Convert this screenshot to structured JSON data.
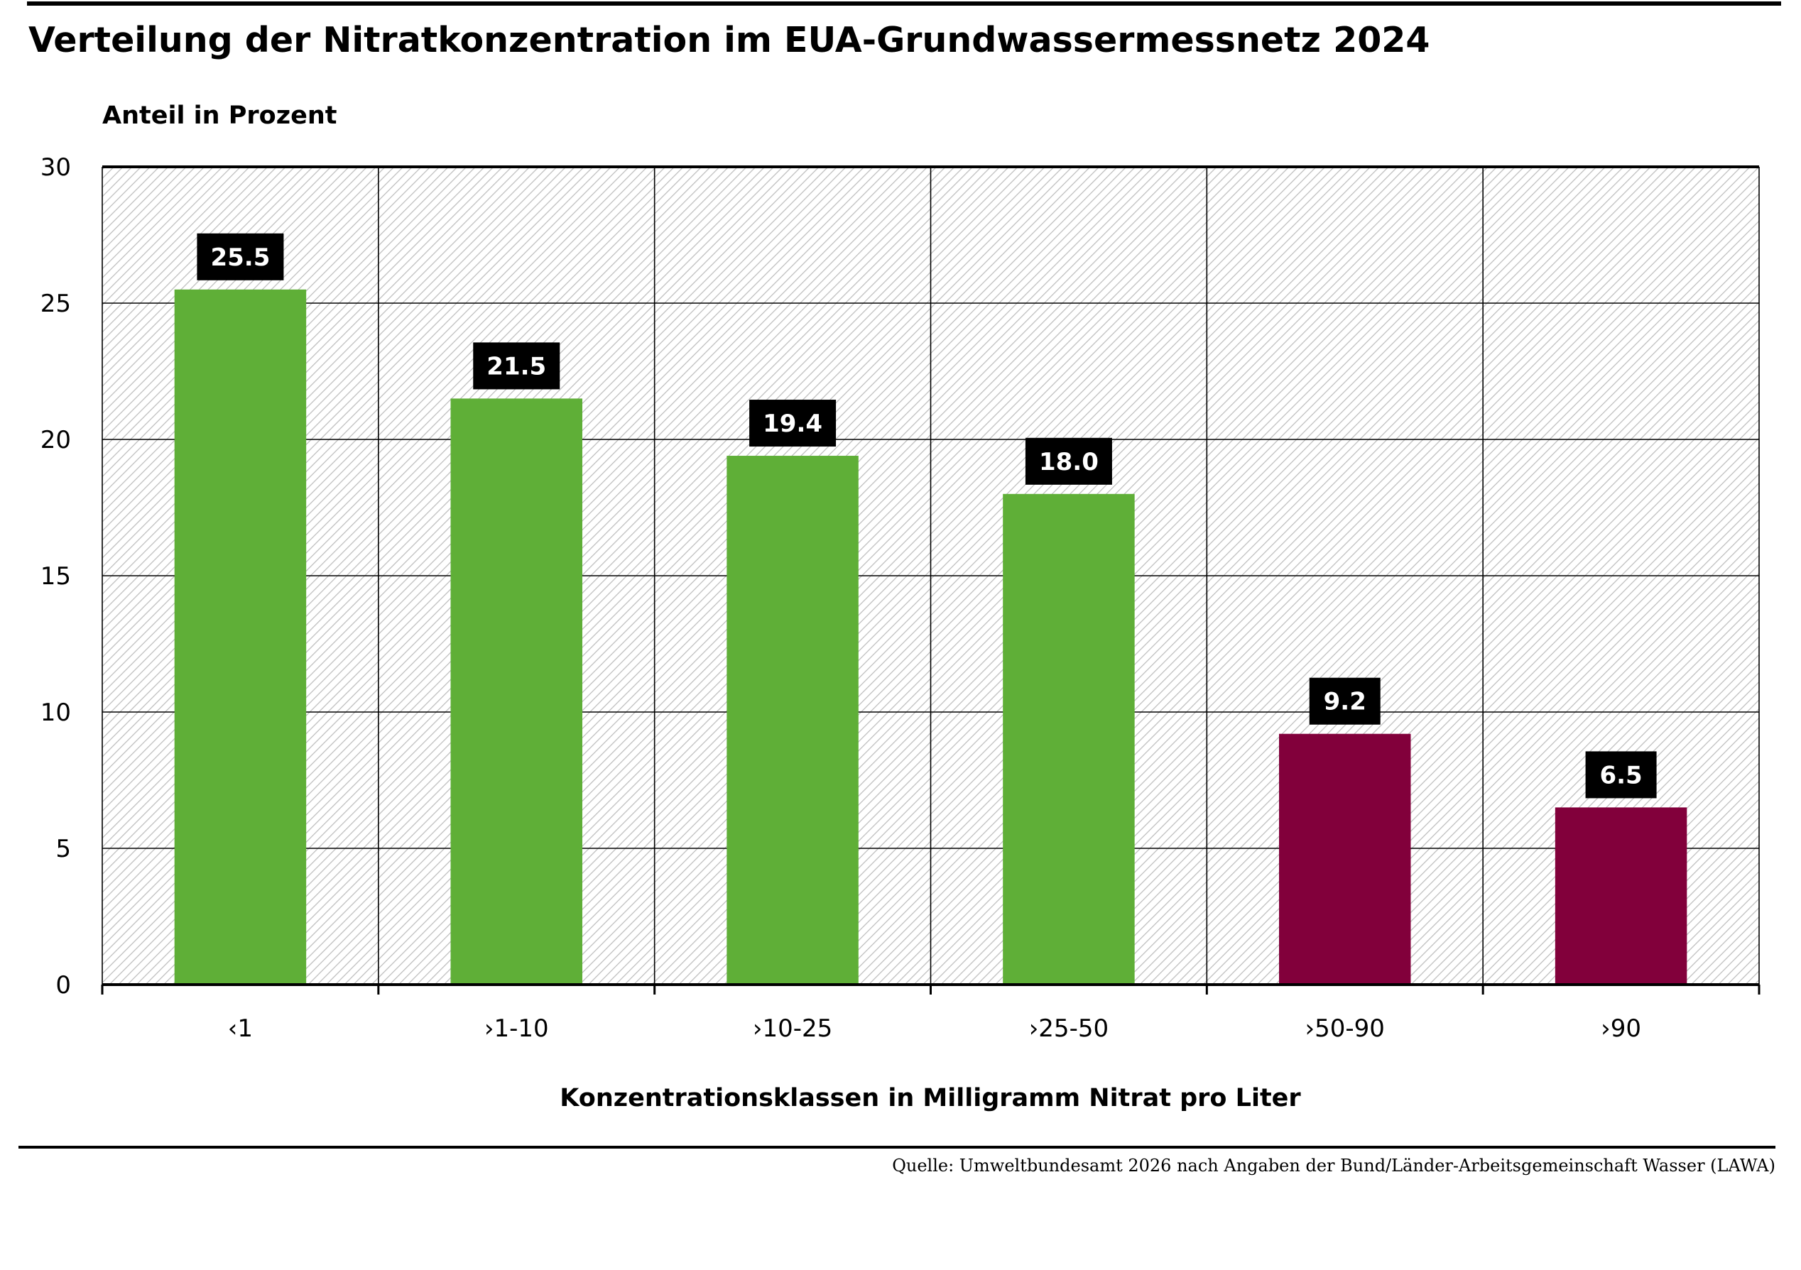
{
  "chart_data": {
    "type": "bar",
    "title": "Verteilung der Nitratkonzentration im EUA-Grundwassermessnetz 2024",
    "ylabel": "Anteil in Prozent",
    "xlabel": "Konzentrationsklassen in Milligramm Nitrat pro Liter",
    "categories": [
      "‹1",
      "›1-10",
      "›10-25",
      "›25-50",
      "›50-90",
      "›90"
    ],
    "values": [
      25.5,
      21.5,
      19.4,
      18.0,
      9.2,
      6.5
    ],
    "value_labels": [
      "25.5",
      "21.5",
      "19.4",
      "18.0",
      "9.2",
      "6.5"
    ],
    "bar_colors": [
      "#5faf37",
      "#5faf37",
      "#5faf37",
      "#5faf37",
      "#82003b",
      "#82003b"
    ],
    "ylim": [
      0,
      30
    ],
    "yticks": [
      0,
      5,
      10,
      15,
      20,
      25,
      30
    ],
    "grid": true,
    "source": "Quelle: Umweltbundesamt 2026 nach Angaben der Bund/Länder-Arbeitsgemeinschaft Wasser (LAWA)"
  }
}
